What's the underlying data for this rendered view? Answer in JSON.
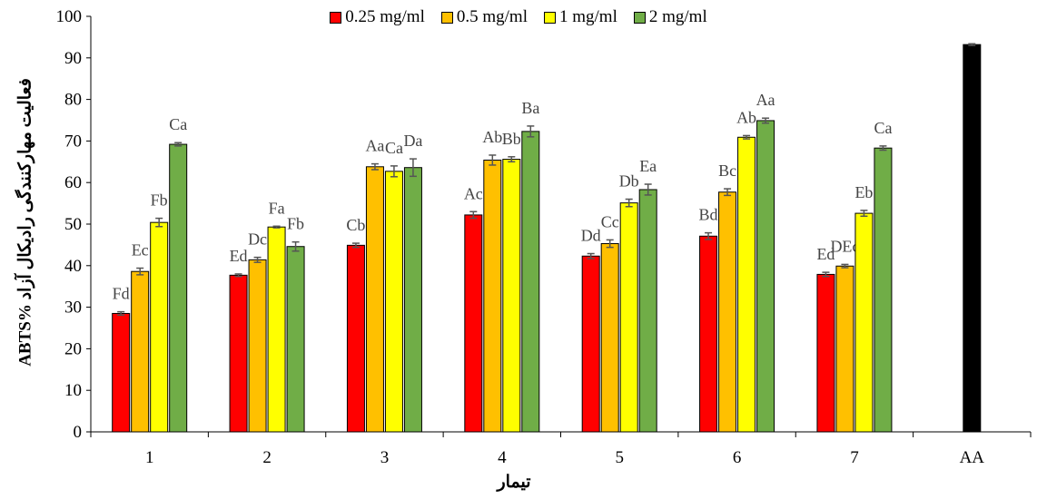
{
  "chart_data": {
    "type": "bar",
    "ylabel": "ABTS% فعالیت مهارکنندگی رادیکال آزاد",
    "xlabel": "تیمار",
    "ylim": [
      0,
      100
    ],
    "yticks": [
      0,
      10,
      20,
      30,
      40,
      50,
      60,
      70,
      80,
      90,
      100
    ],
    "categories": [
      "1",
      "2",
      "3",
      "4",
      "5",
      "6",
      "7",
      "AA"
    ],
    "legend_position": "top-center",
    "series": [
      {
        "name": "0.25 mg/ml",
        "color": "#FF0000",
        "values": [
          28.5,
          37.7,
          44.9,
          52.2,
          42.3,
          47.1,
          37.9,
          null
        ],
        "errors": [
          0.4,
          0.3,
          0.5,
          0.8,
          0.6,
          0.8,
          0.5,
          null
        ],
        "labels": [
          "Fd",
          "Ed",
          "Cb",
          "Ac",
          "Dd",
          "Bd",
          "Ed",
          ""
        ]
      },
      {
        "name": "0.5 mg/ml",
        "color": "#FFC000",
        "values": [
          38.6,
          41.4,
          63.8,
          65.4,
          45.3,
          57.7,
          39.9,
          null
        ],
        "errors": [
          0.8,
          0.6,
          0.7,
          1.2,
          0.9,
          0.8,
          0.4,
          null
        ],
        "labels": [
          "Ec",
          "Dc",
          "Aa",
          "Ab",
          "Cc",
          "Bc",
          "DEc",
          ""
        ]
      },
      {
        "name": "1 mg/ml",
        "color": "#FFFF00",
        "values": [
          50.4,
          49.3,
          62.7,
          65.6,
          55.1,
          70.9,
          52.6,
          null
        ],
        "errors": [
          1.0,
          0.2,
          1.3,
          0.6,
          0.9,
          0.4,
          0.7,
          null
        ],
        "labels": [
          "Fb",
          "Fa",
          "Ca",
          "Bb",
          "Db",
          "Ab",
          "Eb",
          ""
        ]
      },
      {
        "name": "2 mg/ml",
        "color": "#70AD47",
        "values": [
          69.2,
          44.6,
          63.6,
          72.3,
          58.3,
          74.9,
          68.3,
          null
        ],
        "errors": [
          0.4,
          1.1,
          2.1,
          1.3,
          1.3,
          0.6,
          0.5,
          null
        ],
        "labels": [
          "Ca",
          "Fb",
          "Da",
          "Ba",
          "Ea",
          "Aa",
          "Ca",
          ""
        ]
      },
      {
        "name": "",
        "color": "#000000",
        "values": [
          null,
          null,
          null,
          null,
          null,
          null,
          null,
          93.2
        ],
        "errors": [
          null,
          null,
          null,
          null,
          null,
          null,
          null,
          0.2
        ],
        "labels": [
          "",
          "",
          "",
          "",
          "",
          "",
          "",
          ""
        ]
      }
    ]
  }
}
